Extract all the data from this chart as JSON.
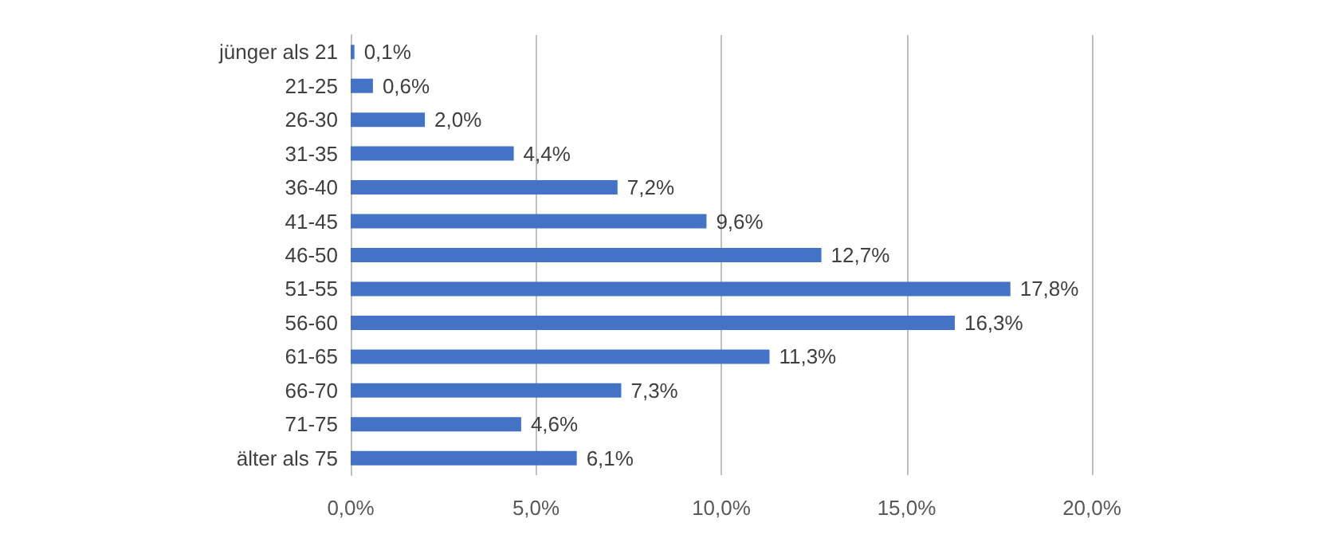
{
  "chart_data": {
    "type": "bar",
    "orientation": "horizontal",
    "categories": [
      "jünger als 21",
      "21-25",
      "26-30",
      "31-35",
      "36-40",
      "41-45",
      "46-50",
      "51-55",
      "56-60",
      "61-65",
      "66-70",
      "71-75",
      "älter als 75"
    ],
    "values": [
      0.1,
      0.6,
      2.0,
      4.4,
      7.2,
      9.6,
      12.7,
      17.8,
      16.3,
      11.3,
      7.3,
      4.6,
      6.1
    ],
    "value_labels": [
      "0,1%",
      "0,6%",
      "2,0%",
      "4,4%",
      "7,2%",
      "9,6%",
      "12,7%",
      "17,8%",
      "16,3%",
      "11,3%",
      "7,3%",
      "4,6%",
      "6,1%"
    ],
    "color": "#4472c4",
    "xlim": [
      0,
      20
    ],
    "xticks": [
      {
        "value": 0,
        "label": "0,0%"
      },
      {
        "value": 5,
        "label": "5,0%"
      },
      {
        "value": 10,
        "label": "10,0%"
      },
      {
        "value": 15,
        "label": "15,0%"
      },
      {
        "value": 20,
        "label": "20,0%"
      }
    ],
    "grid": "x"
  }
}
